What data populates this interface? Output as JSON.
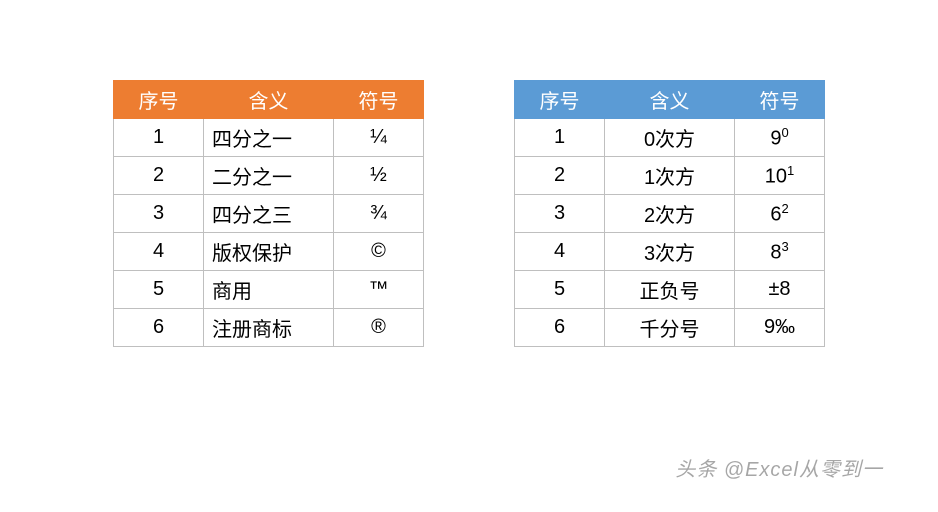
{
  "leftTable": {
    "headerColor": "#ed7d31",
    "columns": [
      "序号",
      "含义",
      "符号"
    ],
    "rows": [
      {
        "seq": "1",
        "meaning": "四分之一",
        "symbol": "¼"
      },
      {
        "seq": "2",
        "meaning": "二分之一",
        "symbol": "½"
      },
      {
        "seq": "3",
        "meaning": "四分之三",
        "symbol": "¾"
      },
      {
        "seq": "4",
        "meaning": "版权保护",
        "symbol": "©"
      },
      {
        "seq": "5",
        "meaning": "商用",
        "symbol": "™"
      },
      {
        "seq": "6",
        "meaning": "注册商标",
        "symbol": "®"
      }
    ]
  },
  "rightTable": {
    "headerColor": "#5b9bd5",
    "columns": [
      "序号",
      "含义",
      "符号"
    ],
    "rows": [
      {
        "seq": "1",
        "meaning": "0次方",
        "symbolBase": "9",
        "symbolSup": "0"
      },
      {
        "seq": "2",
        "meaning": "1次方",
        "symbolBase": "10",
        "symbolSup": "1"
      },
      {
        "seq": "3",
        "meaning": "2次方",
        "symbolBase": "6",
        "symbolSup": "2"
      },
      {
        "seq": "4",
        "meaning": "3次方",
        "symbolBase": "8",
        "symbolSup": "3"
      },
      {
        "seq": "5",
        "meaning": "正负号",
        "symbolPlain": "±8"
      },
      {
        "seq": "6",
        "meaning": "千分号",
        "symbolPlain": "9‰"
      }
    ]
  },
  "watermark": "头条 @Excel从零到一"
}
